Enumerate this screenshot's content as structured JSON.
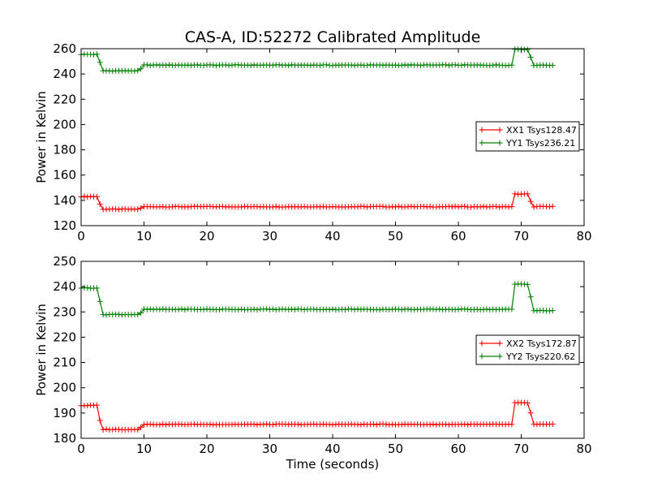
{
  "figure_title": "CAS-A, ID:52272 Calibrated Amplitude",
  "chart_data": [
    {
      "type": "line",
      "title": "CAS-A, ID:52272 Calibrated Amplitude",
      "xlabel": "",
      "ylabel": "Power in Kelvin",
      "xlim": [
        0,
        80
      ],
      "ylim": [
        120,
        260
      ],
      "xticks": [
        0,
        10,
        20,
        30,
        40,
        50,
        60,
        70,
        80
      ],
      "yticks": [
        120,
        140,
        160,
        180,
        200,
        220,
        240,
        260
      ],
      "xtick_labels": [
        "0",
        "10",
        "20",
        "30",
        "40",
        "50",
        "60",
        "70",
        "80"
      ],
      "ytick_labels": [
        "120",
        "140",
        "160",
        "180",
        "200",
        "220",
        "240",
        "260"
      ],
      "grid": false,
      "legend_position": "center-right",
      "marker": "+",
      "x_step": 0.5,
      "series": [
        {
          "name": "XX1 Tsys128.47",
          "color": "#ff0000",
          "segments": [
            {
              "x0": 0.0,
              "x1": 2.5,
              "level": 143.0
            },
            {
              "x0": 3.0,
              "x1": 3.0,
              "level": 137.0
            },
            {
              "x0": 3.5,
              "x1": 9.0,
              "level": 133.0
            },
            {
              "x0": 9.5,
              "x1": 9.5,
              "level": 134.0
            },
            {
              "x0": 10.0,
              "x1": 68.5,
              "level": 135.0
            },
            {
              "x0": 69.0,
              "x1": 71.0,
              "level": 145.0
            },
            {
              "x0": 71.5,
              "x1": 71.5,
              "level": 139.0
            },
            {
              "x0": 72.0,
              "x1": 75.0,
              "level": 135.0
            }
          ]
        },
        {
          "name": "YY1 Tsys236.21",
          "color": "#008000",
          "segments": [
            {
              "x0": 0.0,
              "x1": 2.5,
              "level": 255.5
            },
            {
              "x0": 3.0,
              "x1": 3.0,
              "level": 249.0
            },
            {
              "x0": 3.5,
              "x1": 9.0,
              "level": 242.5
            },
            {
              "x0": 9.5,
              "x1": 9.5,
              "level": 244.0
            },
            {
              "x0": 10.0,
              "x1": 68.5,
              "level": 247.0
            },
            {
              "x0": 69.0,
              "x1": 71.0,
              "level": 259.5
            },
            {
              "x0": 71.5,
              "x1": 71.5,
              "level": 253.0
            },
            {
              "x0": 72.0,
              "x1": 75.0,
              "level": 247.0
            }
          ]
        }
      ]
    },
    {
      "type": "line",
      "title": "",
      "xlabel": "Time (seconds)",
      "ylabel": "Power in Kelvin",
      "xlim": [
        0,
        80
      ],
      "ylim": [
        180,
        250
      ],
      "xticks": [
        0,
        10,
        20,
        30,
        40,
        50,
        60,
        70,
        80
      ],
      "yticks": [
        180,
        190,
        200,
        210,
        220,
        230,
        240,
        250
      ],
      "xtick_labels": [
        "0",
        "10",
        "20",
        "30",
        "40",
        "50",
        "60",
        "70",
        "80"
      ],
      "ytick_labels": [
        "180",
        "190",
        "200",
        "210",
        "220",
        "230",
        "240",
        "250"
      ],
      "grid": false,
      "legend_position": "center-right",
      "marker": "+",
      "x_step": 0.5,
      "series": [
        {
          "name": "XX2 Tsys172.87",
          "color": "#ff0000",
          "segments": [
            {
              "x0": 0.0,
              "x1": 2.5,
              "level": 193.0
            },
            {
              "x0": 3.0,
              "x1": 3.0,
              "level": 187.0
            },
            {
              "x0": 3.5,
              "x1": 9.0,
              "level": 183.5
            },
            {
              "x0": 9.5,
              "x1": 9.5,
              "level": 184.5
            },
            {
              "x0": 10.0,
              "x1": 68.5,
              "level": 185.5
            },
            {
              "x0": 69.0,
              "x1": 71.0,
              "level": 194.0
            },
            {
              "x0": 71.5,
              "x1": 71.5,
              "level": 190.0
            },
            {
              "x0": 72.0,
              "x1": 75.0,
              "level": 185.5
            }
          ]
        },
        {
          "name": "YY2 Tsys220.62",
          "color": "#008000",
          "segments": [
            {
              "x0": 0.0,
              "x1": 2.5,
              "level": 239.5
            },
            {
              "x0": 3.0,
              "x1": 3.0,
              "level": 234.0
            },
            {
              "x0": 3.5,
              "x1": 9.0,
              "level": 229.0
            },
            {
              "x0": 9.5,
              "x1": 9.5,
              "level": 229.5
            },
            {
              "x0": 10.0,
              "x1": 68.5,
              "level": 231.0
            },
            {
              "x0": 69.0,
              "x1": 71.0,
              "level": 241.0
            },
            {
              "x0": 71.5,
              "x1": 71.5,
              "level": 236.0
            },
            {
              "x0": 72.0,
              "x1": 75.0,
              "level": 230.5
            }
          ]
        }
      ]
    }
  ]
}
